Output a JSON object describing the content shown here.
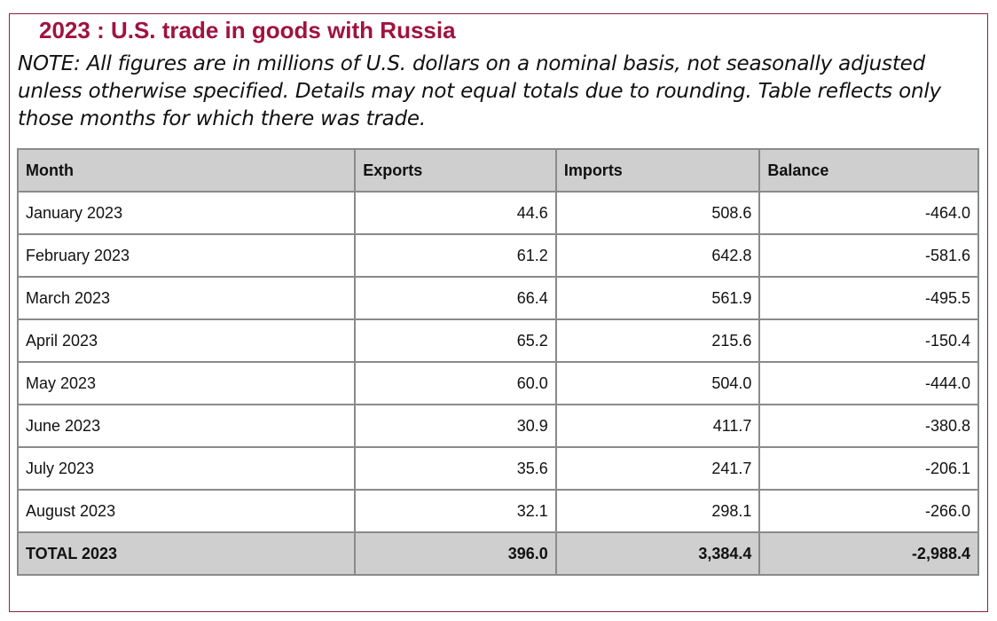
{
  "title": "2023 : U.S. trade in goods with Russia",
  "note": "NOTE: All figures are in millions of U.S. dollars on a nominal basis, not seasonally adjusted unless otherwise specified. Details may not equal totals due to rounding. Table reflects only those months for which there was trade.",
  "table": {
    "headers": [
      "Month",
      "Exports",
      "Imports",
      "Balance"
    ],
    "rows": [
      {
        "month": "January 2023",
        "exports": "44.6",
        "imports": "508.6",
        "balance": "-464.0"
      },
      {
        "month": "February 2023",
        "exports": "61.2",
        "imports": "642.8",
        "balance": "-581.6"
      },
      {
        "month": "March 2023",
        "exports": "66.4",
        "imports": "561.9",
        "balance": "-495.5"
      },
      {
        "month": "April 2023",
        "exports": "65.2",
        "imports": "215.6",
        "balance": "-150.4"
      },
      {
        "month": "May 2023",
        "exports": "60.0",
        "imports": "504.0",
        "balance": "-444.0"
      },
      {
        "month": "June 2023",
        "exports": "30.9",
        "imports": "411.7",
        "balance": "-380.8"
      },
      {
        "month": "July 2023",
        "exports": "35.6",
        "imports": "241.7",
        "balance": "-206.1"
      },
      {
        "month": "August 2023",
        "exports": "32.1",
        "imports": "298.1",
        "balance": "-266.0"
      }
    ],
    "total": {
      "month": "TOTAL 2023",
      "exports": "396.0",
      "imports": "3,384.4",
      "balance": "-2,988.4"
    }
  },
  "colors": {
    "title": "#a0123f",
    "border": "#8c1f4a",
    "header_bg": "#cfcfcf",
    "grid": "#8a8a8a"
  }
}
